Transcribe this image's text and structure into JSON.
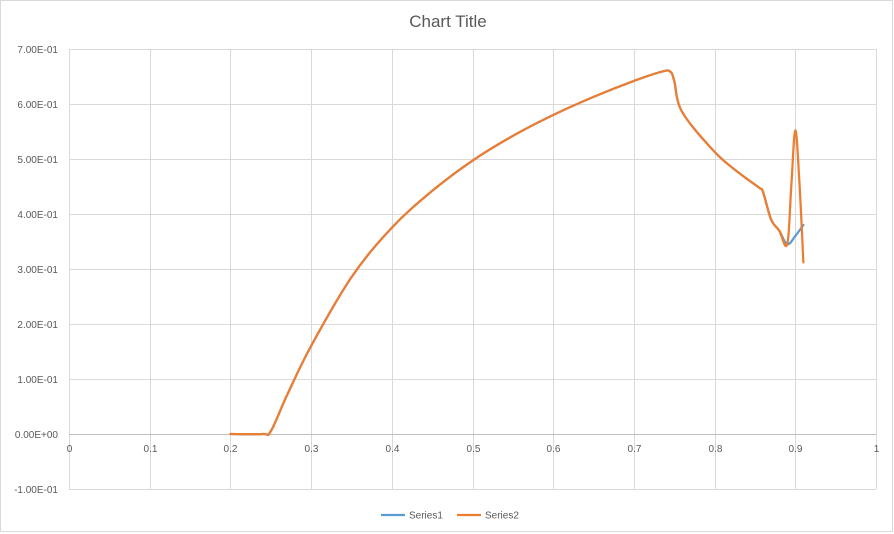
{
  "chart_data": {
    "type": "scatter",
    "title": "Chart Title",
    "xlabel": "",
    "ylabel": "",
    "xlim": [
      0,
      1
    ],
    "ylim": [
      -0.1,
      0.7
    ],
    "x_ticks": [
      0,
      0.1,
      0.2,
      0.3,
      0.4,
      0.5,
      0.6,
      0.7,
      0.8,
      0.9,
      1
    ],
    "x_tick_labels": [
      "0",
      "0.1",
      "0.2",
      "0.3",
      "0.4",
      "0.5",
      "0.6",
      "0.7",
      "0.8",
      "0.9",
      "1"
    ],
    "y_ticks": [
      0.7,
      0.6,
      0.5,
      0.4,
      0.3,
      0.2,
      0.1,
      0.0,
      -0.1
    ],
    "y_tick_labels": [
      "7.00E-01",
      "6.00E-01",
      "5.00E-01",
      "4.00E-01",
      "3.00E-01",
      "2.00E-01",
      "1.00E-01",
      "0.00E+00",
      "-1.00E-01"
    ],
    "grid": true,
    "legend_position": "bottom",
    "smooth": true,
    "series": [
      {
        "name": "Series1",
        "color": "#5b9bd5",
        "x": [
          0.2,
          0.24,
          0.25,
          0.27,
          0.3,
          0.35,
          0.4,
          0.45,
          0.5,
          0.55,
          0.6,
          0.65,
          0.7,
          0.735,
          0.745,
          0.75,
          0.76,
          0.8,
          0.83,
          0.855,
          0.86,
          0.87,
          0.88,
          0.89,
          0.9,
          0.91
        ],
        "y": [
          0.0,
          0.0,
          0.005,
          0.07,
          0.16,
          0.285,
          0.375,
          0.442,
          0.497,
          0.542,
          0.58,
          0.613,
          0.642,
          0.659,
          0.659,
          0.642,
          0.585,
          0.513,
          0.475,
          0.448,
          0.44,
          0.39,
          0.37,
          0.345,
          0.36,
          0.38
        ]
      },
      {
        "name": "Series2",
        "color": "#ed7d31",
        "x": [
          0.2,
          0.24,
          0.25,
          0.27,
          0.3,
          0.35,
          0.4,
          0.45,
          0.5,
          0.55,
          0.6,
          0.65,
          0.7,
          0.735,
          0.745,
          0.75,
          0.76,
          0.8,
          0.83,
          0.855,
          0.86,
          0.87,
          0.88,
          0.89,
          0.895,
          0.9,
          0.905,
          0.91
        ],
        "y": [
          0.0,
          0.0,
          0.005,
          0.07,
          0.16,
          0.285,
          0.375,
          0.442,
          0.497,
          0.542,
          0.58,
          0.613,
          0.642,
          0.659,
          0.659,
          0.642,
          0.585,
          0.513,
          0.475,
          0.448,
          0.44,
          0.39,
          0.37,
          0.345,
          0.45,
          0.552,
          0.46,
          0.312
        ]
      }
    ]
  }
}
